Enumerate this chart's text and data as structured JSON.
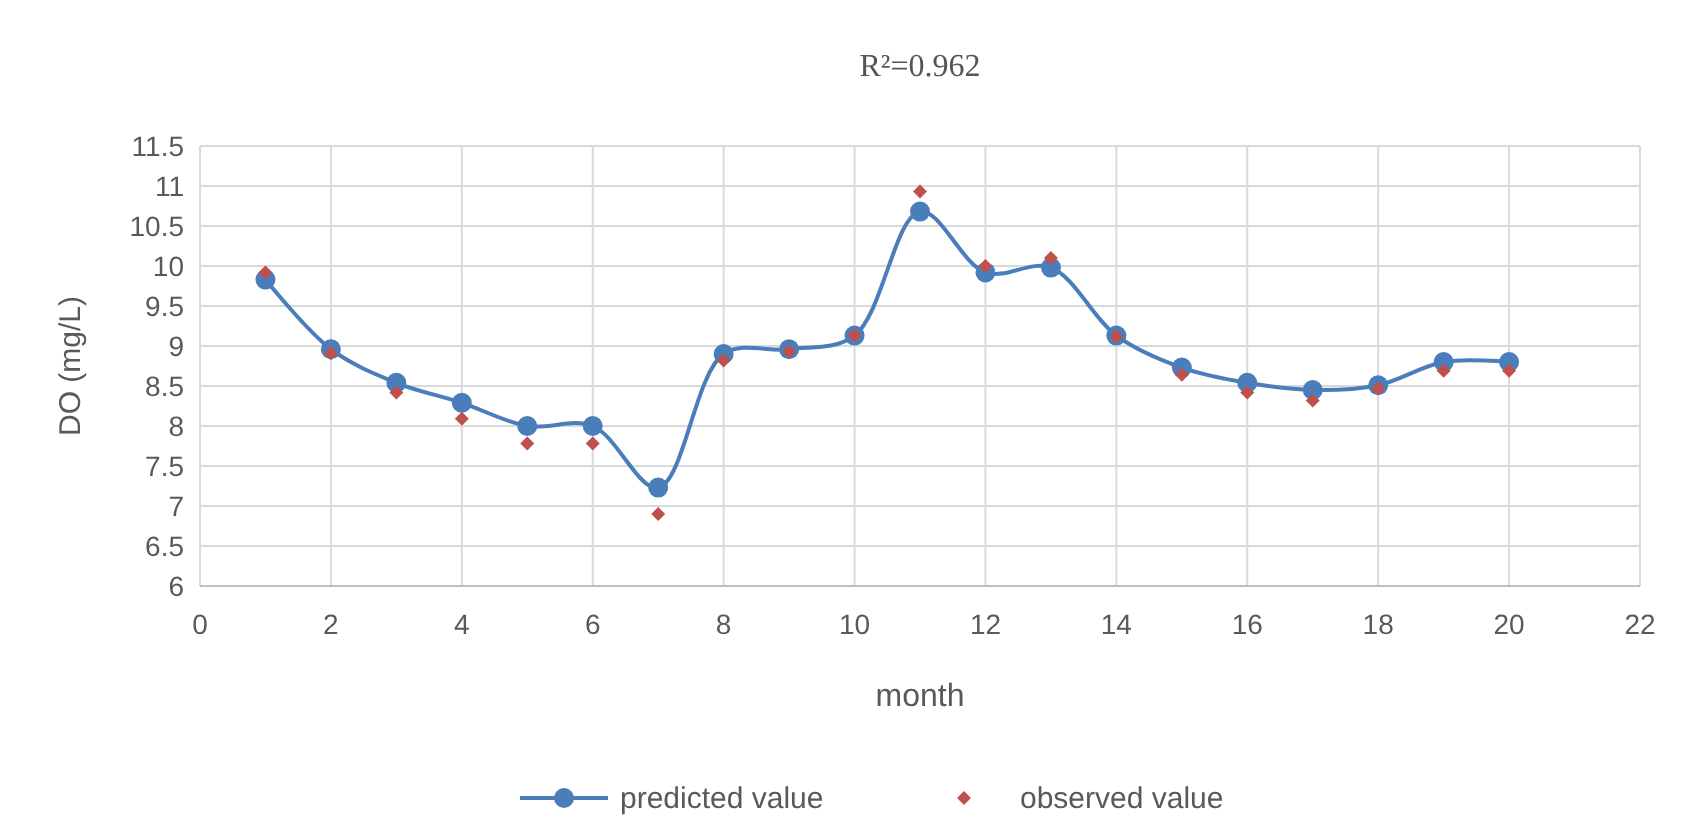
{
  "chart_data": {
    "type": "line",
    "title": "R²=0.962",
    "xlabel": "month",
    "ylabel": "DO (mg/L)",
    "x": [
      1,
      2,
      3,
      4,
      5,
      6,
      7,
      8,
      9,
      10,
      11,
      12,
      13,
      14,
      15,
      16,
      17,
      18,
      19,
      20
    ],
    "series": [
      {
        "name": "predicted value",
        "color": "#4a7ebb",
        "marker": "circle",
        "values": [
          9.83,
          8.96,
          8.54,
          8.29,
          8.0,
          8.0,
          7.23,
          8.9,
          8.96,
          9.13,
          10.68,
          9.92,
          9.98,
          9.13,
          8.73,
          8.54,
          8.45,
          8.51,
          8.8,
          8.8
        ]
      },
      {
        "name": "observed value",
        "type": "scatter",
        "color": "#c0504d",
        "marker": "diamond",
        "values": [
          9.92,
          8.91,
          8.42,
          8.09,
          7.78,
          7.78,
          6.9,
          8.82,
          8.93,
          9.13,
          10.93,
          10.0,
          10.1,
          9.12,
          8.64,
          8.42,
          8.32,
          8.47,
          8.69,
          8.69
        ]
      }
    ],
    "xlim": [
      0,
      22
    ],
    "xticks": [
      0,
      2,
      4,
      6,
      8,
      10,
      12,
      14,
      16,
      18,
      20,
      22
    ],
    "ylim": [
      6,
      11.5
    ],
    "yticks": [
      6,
      6.5,
      7,
      7.5,
      8,
      8.5,
      9,
      9.5,
      10,
      10.5,
      11,
      11.5
    ],
    "grid": true,
    "legend": "bottom",
    "line_style": "solid"
  }
}
